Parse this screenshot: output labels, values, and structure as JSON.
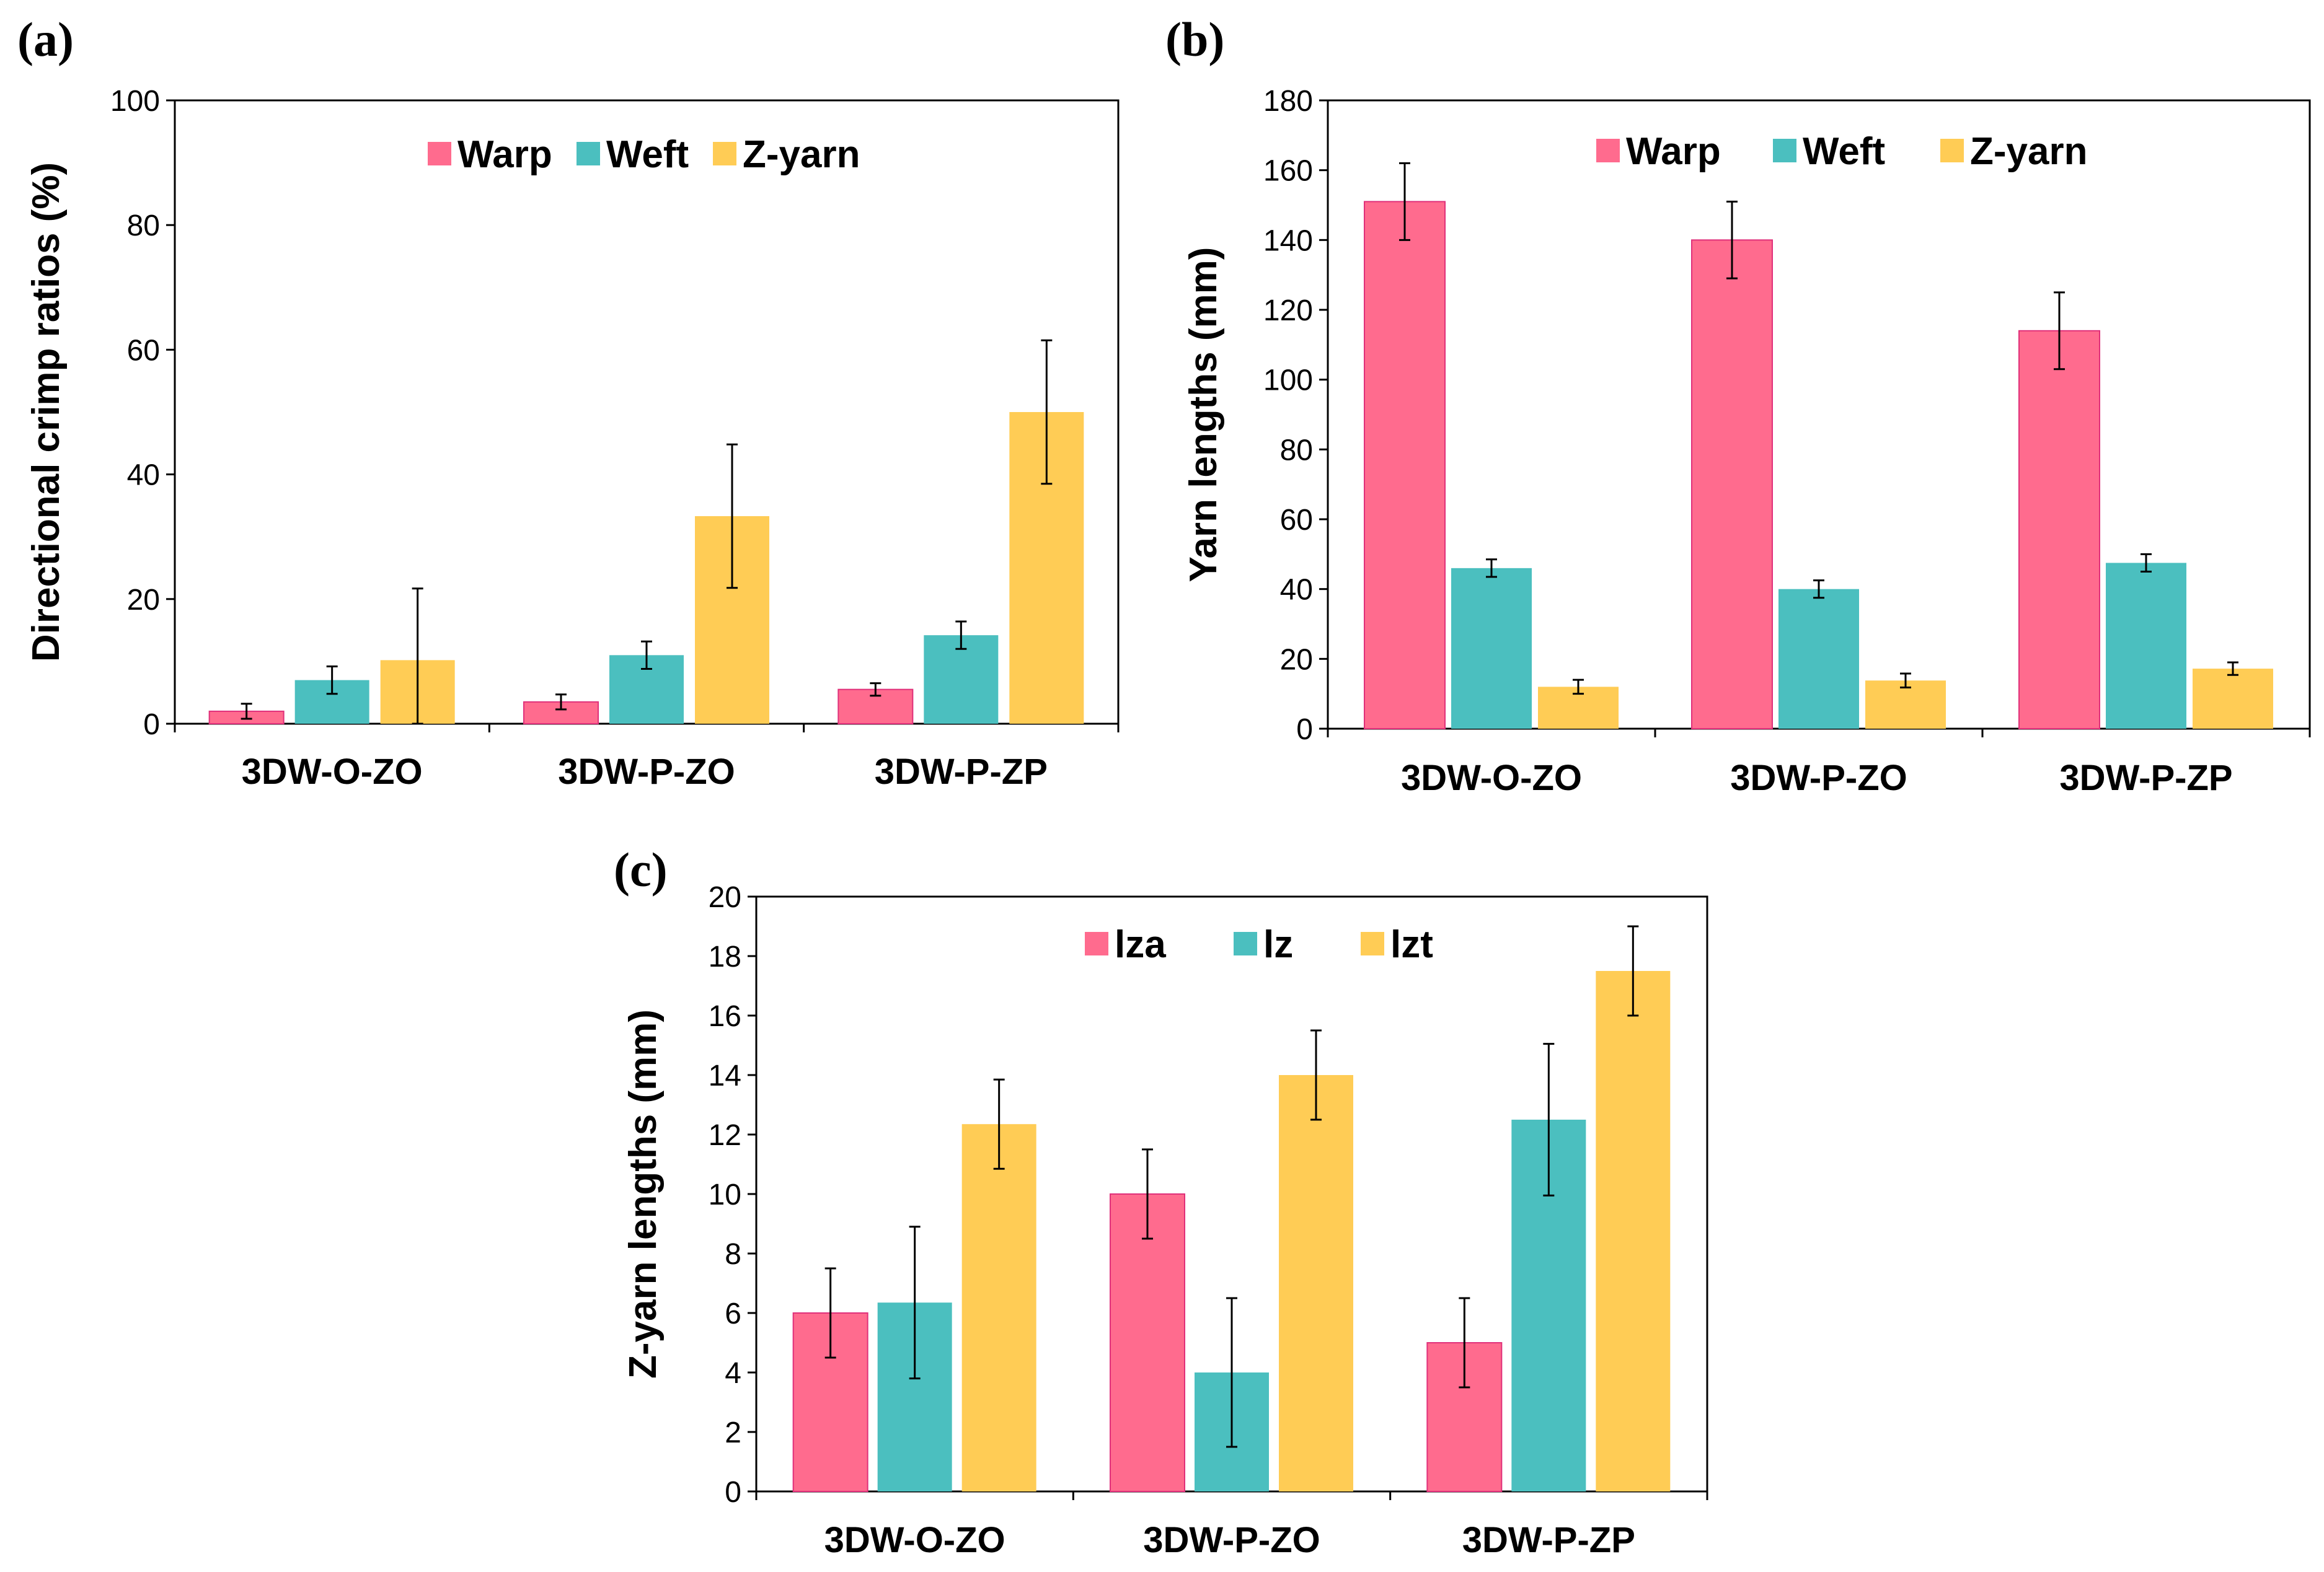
{
  "chart_data": [
    {
      "panel": "(a)",
      "type": "bar",
      "ylabel": "Directional crimp ratios (%)",
      "ylim": [
        0,
        100
      ],
      "yticks": [
        0,
        20,
        40,
        60,
        80,
        100
      ],
      "categories": [
        "3DW-O-ZO",
        "3DW-P-ZO",
        "3DW-P-ZP"
      ],
      "series": [
        {
          "name": "Warp",
          "color": "#FF6B8E",
          "values": [
            2,
            3.5,
            5.5
          ],
          "errors": [
            1.2,
            1.2,
            1.0
          ]
        },
        {
          "name": "Weft",
          "color": "#4BBFBF",
          "values": [
            7,
            11,
            14.2
          ],
          "errors": [
            2.2,
            2.2,
            2.2
          ]
        },
        {
          "name": "Z-yarn",
          "color": "#FFCC55",
          "values": [
            10.2,
            33.3,
            50
          ],
          "errors": [
            11.5,
            11.5,
            11.5
          ]
        }
      ]
    },
    {
      "panel": "(b)",
      "type": "bar",
      "ylabel": "Yarn lengths (mm)",
      "ylim": [
        0,
        180
      ],
      "yticks": [
        0,
        20,
        40,
        60,
        80,
        100,
        120,
        140,
        160,
        180
      ],
      "categories": [
        "3DW-O-ZO",
        "3DW-P-ZO",
        "3DW-P-ZP"
      ],
      "series": [
        {
          "name": "Warp",
          "color": "#FF6B8E",
          "values": [
            151,
            140,
            114
          ],
          "errors": [
            11,
            11,
            11
          ]
        },
        {
          "name": "Weft",
          "color": "#4BBFBF",
          "values": [
            46,
            40,
            47.5
          ],
          "errors": [
            2.5,
            2.5,
            2.5
          ]
        },
        {
          "name": "Z-yarn",
          "color": "#FFCC55",
          "values": [
            12,
            13.8,
            17.2
          ],
          "errors": [
            2,
            2,
            1.8
          ]
        }
      ]
    },
    {
      "panel": "(c)",
      "type": "bar",
      "ylabel": "Z-yarn lengths (mm)",
      "ylim": [
        0,
        20
      ],
      "yticks": [
        0,
        2,
        4,
        6,
        8,
        10,
        12,
        14,
        16,
        18,
        20
      ],
      "categories": [
        "3DW-O-ZO",
        "3DW-P-ZO",
        "3DW-P-ZP"
      ],
      "series": [
        {
          "name": "lza",
          "color": "#FF6B8E",
          "values": [
            6,
            10,
            5
          ],
          "errors": [
            1.5,
            1.5,
            1.5
          ]
        },
        {
          "name": "lz",
          "color": "#4BBFBF",
          "values": [
            6.35,
            4,
            12.5
          ],
          "errors": [
            2.55,
            2.5,
            2.55
          ]
        },
        {
          "name": "lzt",
          "color": "#FFCC55",
          "values": [
            12.35,
            14,
            17.5
          ],
          "errors": [
            1.5,
            1.5,
            1.5
          ]
        }
      ]
    }
  ]
}
